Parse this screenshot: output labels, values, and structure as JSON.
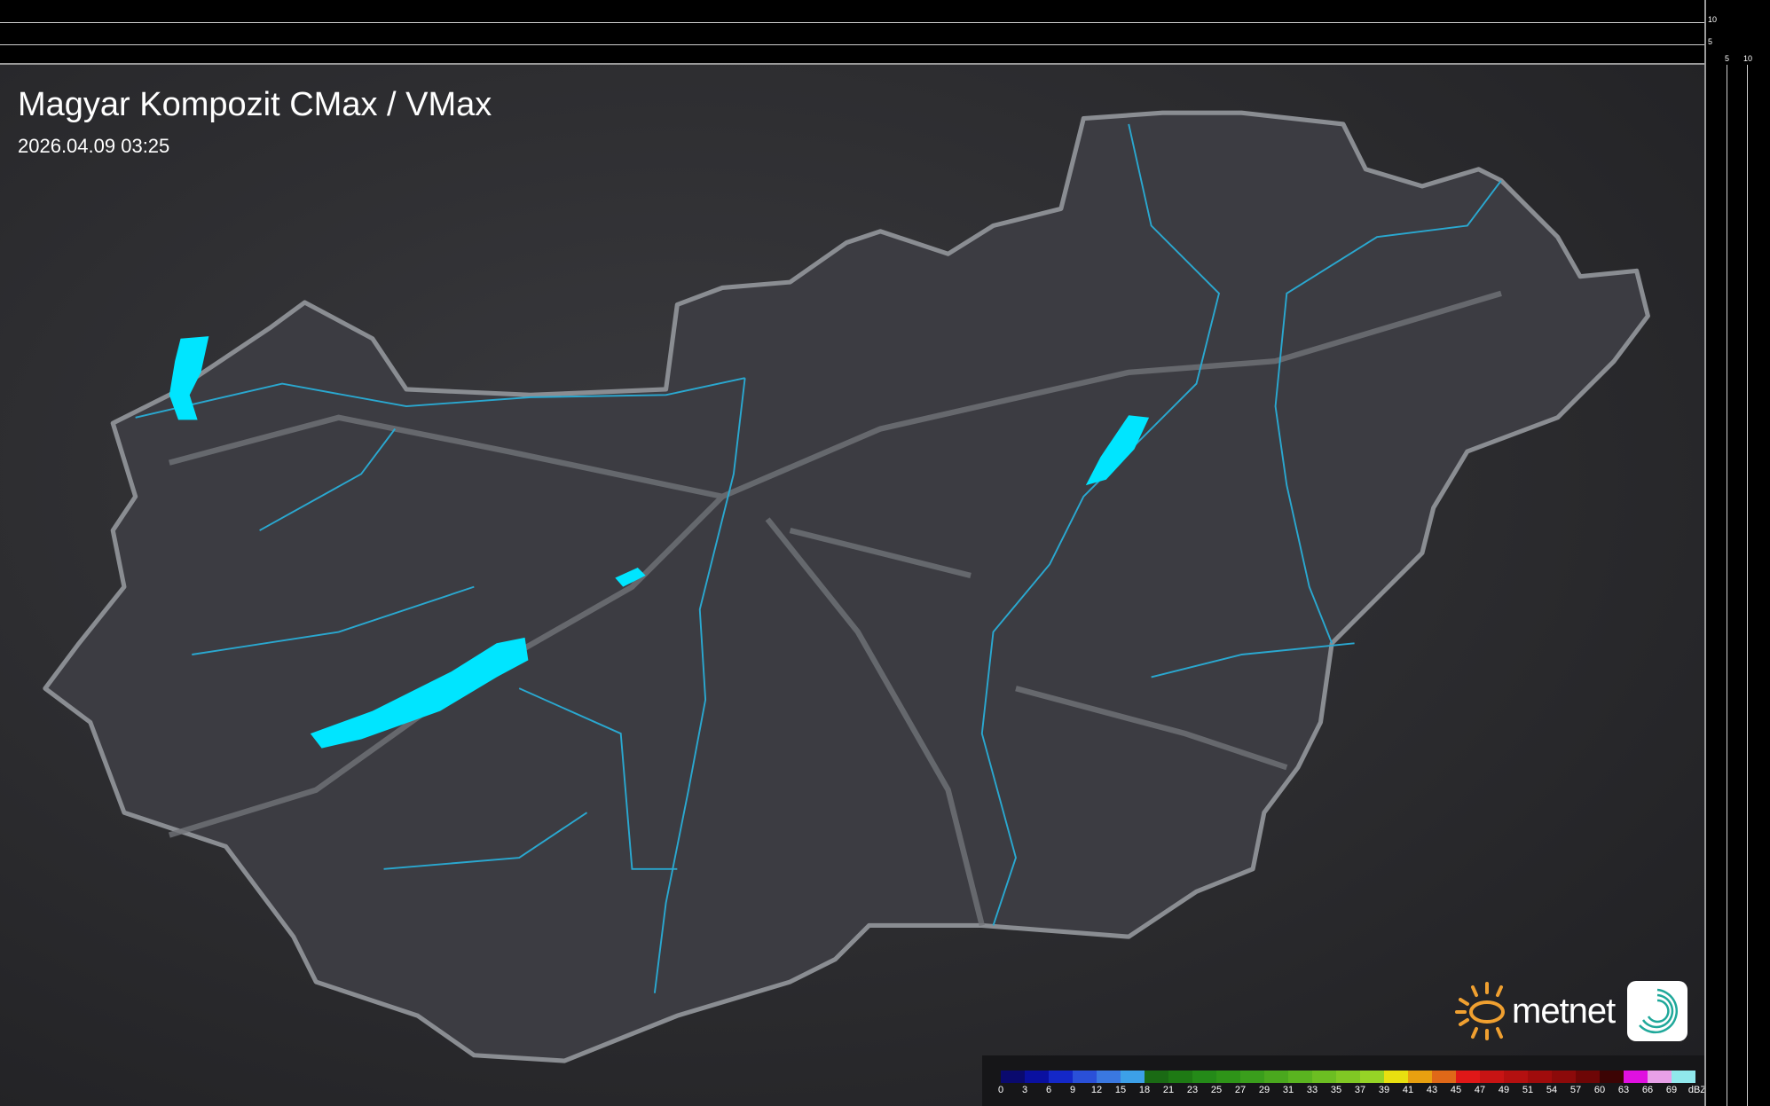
{
  "header": {
    "title": "Magyar Kompozit CMax / VMax",
    "timestamp": "2026.04.09 03:25"
  },
  "scale": {
    "vertical_labels": [
      "10",
      "5"
    ],
    "horizontal_labels": [
      "5",
      "10"
    ]
  },
  "logo": {
    "text": "metnet",
    "icon": "app-swirl-icon",
    "sun_icon": "sun-icon"
  },
  "legend": {
    "unit": "dBZ",
    "labels": [
      "0",
      "3",
      "6",
      "9",
      "12",
      "15",
      "18",
      "21",
      "23",
      "25",
      "27",
      "29",
      "31",
      "33",
      "35",
      "37",
      "39",
      "41",
      "43",
      "45",
      "47",
      "49",
      "51",
      "54",
      "57",
      "60",
      "63",
      "66",
      "69"
    ],
    "colors": [
      "#0a0a6e",
      "#0a10a0",
      "#1428c8",
      "#2a50d8",
      "#3a78e0",
      "#3ca0e8",
      "#1a6a14",
      "#1e7a14",
      "#248a18",
      "#2e9418",
      "#3a9e1c",
      "#4aa81e",
      "#5ab420",
      "#6cbe22",
      "#80c824",
      "#96d426",
      "#e8e010",
      "#e8a010",
      "#e06818",
      "#e01818",
      "#c81414",
      "#b41010",
      "#a00c0c",
      "#8c0a0a",
      "#6e0606",
      "#3c0404",
      "#e010e0",
      "#e8a0e8",
      "#90e8ec"
    ]
  },
  "colors": {
    "border": "#8a8d92",
    "rivers": "#2aa8d0",
    "lakes": "#00e5ff",
    "land": "#3c3c42"
  }
}
